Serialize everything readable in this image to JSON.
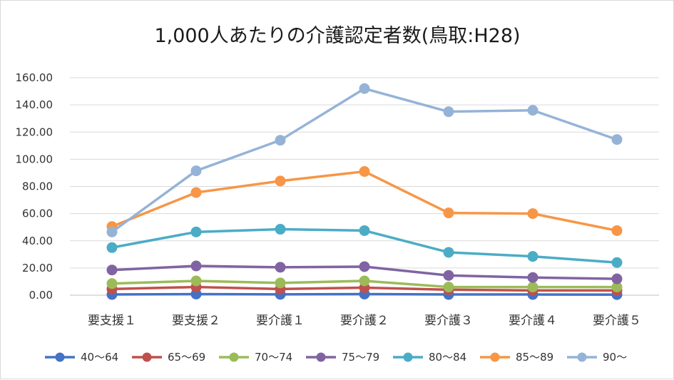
{
  "chart_data": {
    "type": "line",
    "title": "1,000人あたりの介護認定者数(鳥取:H28)",
    "categories": [
      "要支援１",
      "要支援２",
      "要介護１",
      "要介護２",
      "要介護３",
      "要介護４",
      "要介護５"
    ],
    "ylim": [
      0,
      160
    ],
    "yticks": [
      "0.00",
      "20.00",
      "40.00",
      "60.00",
      "80.00",
      "100.00",
      "120.00",
      "140.00",
      "160.00"
    ],
    "grid": true,
    "legend_position": "bottom",
    "series": [
      {
        "name": "40〜64",
        "color": "#4472C4",
        "values": [
          0.5,
          0.8,
          0.6,
          0.8,
          0.5,
          0.5,
          0.4
        ]
      },
      {
        "name": "65〜69",
        "color": "#C0504D",
        "values": [
          4.5,
          6.0,
          4.5,
          5.5,
          4.0,
          3.5,
          3.5
        ]
      },
      {
        "name": "70〜74",
        "color": "#9BBB59",
        "values": [
          8.5,
          10.5,
          9.0,
          10.5,
          6.0,
          6.0,
          6.0
        ]
      },
      {
        "name": "75〜79",
        "color": "#8064A2",
        "values": [
          18.5,
          21.5,
          20.5,
          21.0,
          14.5,
          13.0,
          12.0
        ]
      },
      {
        "name": "80〜84",
        "color": "#4BACC6",
        "values": [
          35.0,
          46.5,
          48.5,
          47.5,
          31.5,
          28.5,
          24.0
        ]
      },
      {
        "name": "85〜89",
        "color": "#F79646",
        "values": [
          50.5,
          75.5,
          84.0,
          91.0,
          60.5,
          60.0,
          47.5
        ]
      },
      {
        "name": "90〜",
        "color": "#95B3D7",
        "values": [
          46.5,
          91.5,
          114.0,
          152.0,
          135.0,
          136.0,
          114.5
        ]
      }
    ]
  }
}
